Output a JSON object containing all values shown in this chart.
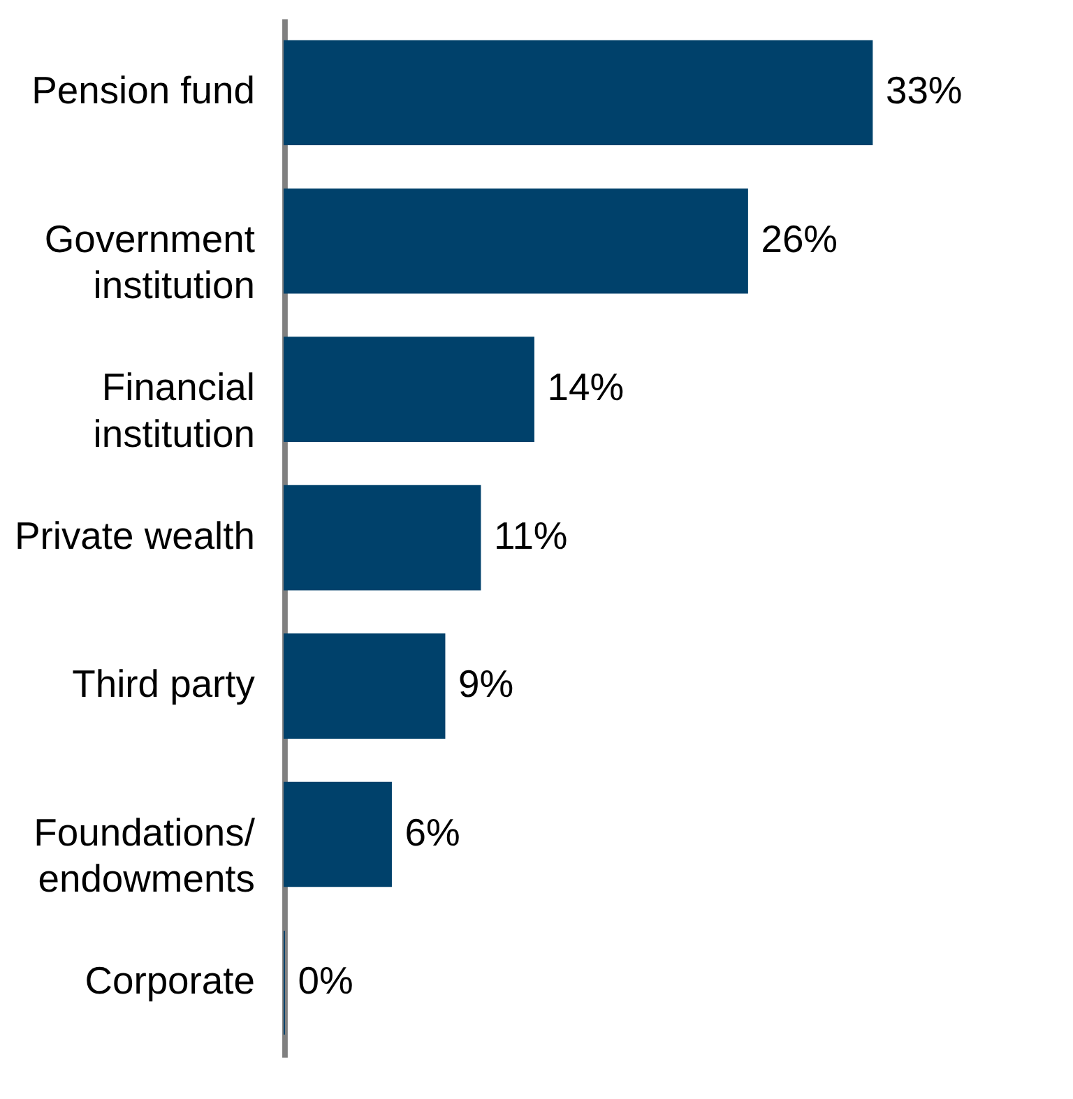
{
  "chart_data": {
    "type": "bar",
    "orientation": "horizontal",
    "categories": [
      "Pension fund",
      "Government\ninstitution",
      "Financial\ninstitution",
      "Private wealth",
      "Third party",
      "Foundations/\nendowments",
      "Corporate"
    ],
    "values": [
      33,
      26,
      14,
      11,
      9,
      6,
      0
    ],
    "value_labels": [
      "33%",
      "26%",
      "14%",
      "11%",
      "9%",
      "6%",
      "0%"
    ],
    "color": "#00416b",
    "tick_labels": "y"
  }
}
